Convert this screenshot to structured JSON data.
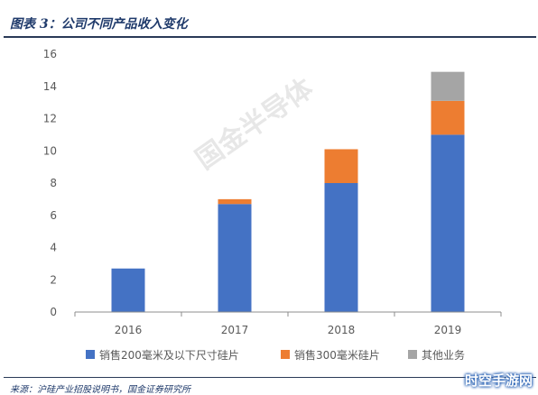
{
  "figure": {
    "title": "图表 3：公司不同产品收入变化",
    "source": "来源：沪硅产业招股说明书，国金证券研究所",
    "watermark": "国金半导体",
    "badge": "时空手游网"
  },
  "colors": {
    "series": [
      "#4472c4",
      "#ed7d31",
      "#a5a5a5"
    ],
    "axis": "#595959",
    "title": "#1f3a6b"
  },
  "chart_data": {
    "type": "bar",
    "stacked": true,
    "categories": [
      "2016",
      "2017",
      "2018",
      "2019"
    ],
    "series": [
      {
        "name": "销售200毫米及以下尺寸硅片",
        "values": [
          2.7,
          6.7,
          8.0,
          11.0
        ]
      },
      {
        "name": "销售300毫米硅片",
        "values": [
          0,
          0.3,
          2.1,
          2.1
        ]
      },
      {
        "name": "其他业务",
        "values": [
          0,
          0,
          0,
          1.8
        ]
      }
    ],
    "title": "",
    "xlabel": "",
    "ylabel": "",
    "ylim": [
      0,
      16
    ],
    "yticks": [
      "0",
      "2",
      "4",
      "6",
      "8",
      "10",
      "12",
      "14",
      "16"
    ],
    "grid": false,
    "legend_position": "bottom"
  }
}
